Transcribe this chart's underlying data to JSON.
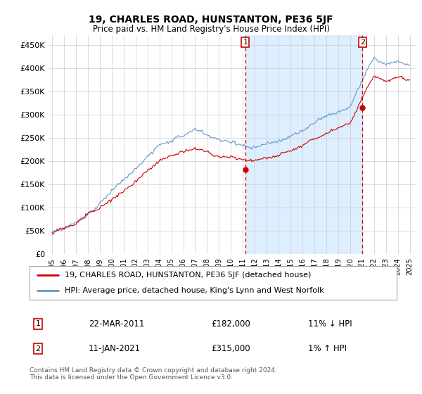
{
  "title": "19, CHARLES ROAD, HUNSTANTON, PE36 5JF",
  "subtitle": "Price paid vs. HM Land Registry's House Price Index (HPI)",
  "legend_line1": "19, CHARLES ROAD, HUNSTANTON, PE36 5JF (detached house)",
  "legend_line2": "HPI: Average price, detached house, King's Lynn and West Norfolk",
  "annotation1_date": "22-MAR-2011",
  "annotation1_price": "£182,000",
  "annotation1_hpi": "11% ↓ HPI",
  "annotation2_date": "11-JAN-2021",
  "annotation2_price": "£315,000",
  "annotation2_hpi": "1% ↑ HPI",
  "footer": "Contains HM Land Registry data © Crown copyright and database right 2024.\nThis data is licensed under the Open Government Licence v3.0.",
  "ylim": [
    0,
    470000
  ],
  "yticks": [
    0,
    50000,
    100000,
    150000,
    200000,
    250000,
    300000,
    350000,
    400000,
    450000
  ],
  "ytick_labels": [
    "£0",
    "£50K",
    "£100K",
    "£150K",
    "£200K",
    "£250K",
    "£300K",
    "£350K",
    "£400K",
    "£450K"
  ],
  "red_color": "#cc0000",
  "blue_color": "#6699cc",
  "shade_color": "#ddeeff",
  "background_color": "#ffffff",
  "grid_color": "#cccccc",
  "sale1_x": 2011.22,
  "sale1_y": 182000,
  "sale2_x": 2021.03,
  "sale2_y": 315000,
  "xlim_left": 1994.7,
  "xlim_right": 2025.5
}
